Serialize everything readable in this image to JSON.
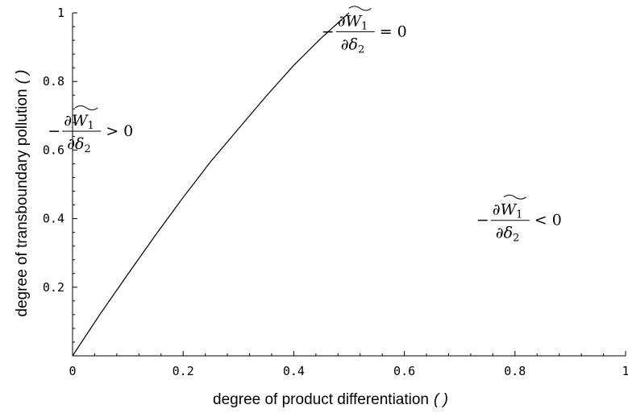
{
  "chart_data": {
    "type": "line",
    "xlabel": "degree of product differentiation",
    "xlabel_symbol": "( )",
    "ylabel": "degree of transboundary pollution",
    "ylabel_symbol": "( )",
    "xlim": [
      0,
      1
    ],
    "ylim": [
      0,
      1
    ],
    "x_ticks": [
      0,
      0.2,
      0.4,
      0.6,
      0.8,
      1
    ],
    "x_tick_labels": [
      "0",
      "0.2",
      "0.4",
      "0.6",
      "0.8",
      "1"
    ],
    "y_ticks": [
      0.2,
      0.4,
      0.6,
      0.8,
      1
    ],
    "y_tick_labels": [
      "0.2",
      "0.4",
      "0.6",
      "0.8",
      "1"
    ],
    "grid": false,
    "series": [
      {
        "x": [
          0,
          0.05,
          0.1,
          0.15,
          0.2,
          0.25,
          0.3,
          0.35,
          0.4,
          0.45,
          0.5
        ],
        "y": [
          0,
          0.122,
          0.238,
          0.352,
          0.462,
          0.567,
          0.662,
          0.757,
          0.847,
          0.927,
          1.0
        ]
      }
    ],
    "annotations": [
      {
        "sign": "= 0",
        "x": 0.59,
        "y": 0.945
      },
      {
        "sign": "> 0",
        "x": 0.095,
        "y": 0.655
      },
      {
        "sign": "< 0",
        "x": 0.87,
        "y": 0.395
      }
    ]
  }
}
